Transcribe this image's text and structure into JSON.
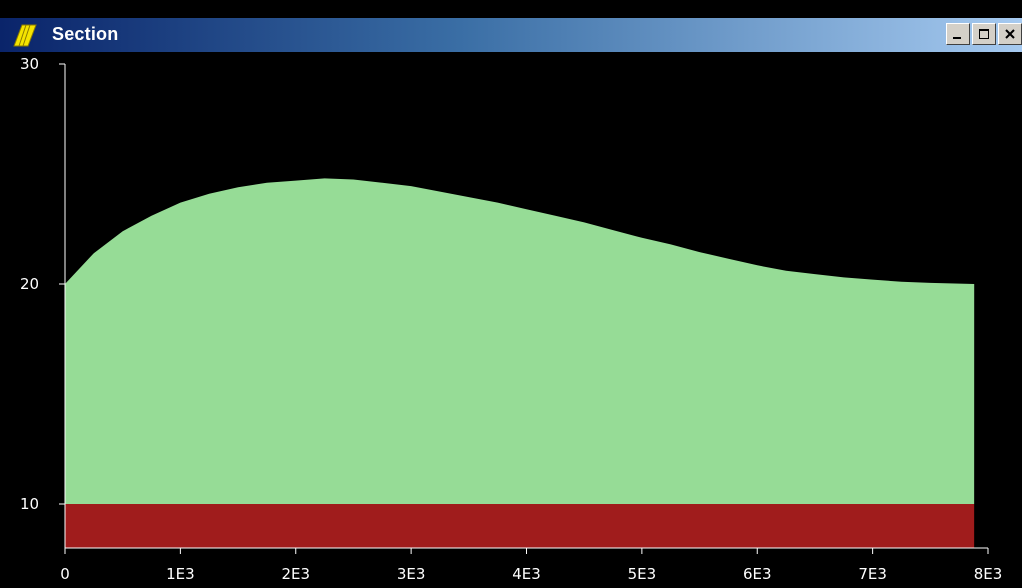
{
  "window": {
    "title": "Section",
    "controls": [
      "minimize",
      "maximize",
      "close"
    ]
  },
  "colors": {
    "background": "#000000",
    "fill_upper": "#96dc96",
    "fill_lower": "#a01c1c",
    "axis": "#ffffff"
  },
  "chart_data": {
    "type": "area",
    "title": "",
    "xlabel": "",
    "ylabel": "",
    "xlim": [
      0,
      8000
    ],
    "ylim": [
      8,
      30
    ],
    "x_ticks": [
      0,
      1000,
      2000,
      3000,
      4000,
      5000,
      6000,
      7000,
      8000
    ],
    "x_tick_labels": [
      "0",
      "1E3",
      "2E3",
      "3E3",
      "4E3",
      "5E3",
      "6E3",
      "7E3",
      "8E3"
    ],
    "y_ticks": [
      10,
      20,
      30
    ],
    "y_tick_labels": [
      "10",
      "20",
      "30"
    ],
    "layers": [
      {
        "lower": 8,
        "upper_constant": 10
      },
      {
        "lower": 10,
        "upper": {
          "x": [
            0,
            250,
            500,
            750,
            1000,
            1250,
            1500,
            1750,
            2000,
            2250,
            2500,
            2750,
            3000,
            3250,
            3500,
            3750,
            4000,
            4250,
            4500,
            4750,
            5000,
            5250,
            5500,
            5750,
            6000,
            6250,
            6500,
            6750,
            7000,
            7250,
            7500,
            7880
          ],
          "y": [
            20.0,
            21.4,
            22.4,
            23.1,
            23.7,
            24.1,
            24.4,
            24.6,
            24.7,
            24.8,
            24.75,
            24.6,
            24.45,
            24.2,
            23.95,
            23.7,
            23.4,
            23.1,
            22.8,
            22.45,
            22.1,
            21.8,
            21.45,
            21.15,
            20.85,
            20.6,
            20.45,
            20.3,
            20.2,
            20.1,
            20.05,
            20.0
          ]
        }
      }
    ],
    "x_end": 7880,
    "grid": false,
    "legend": "none"
  }
}
